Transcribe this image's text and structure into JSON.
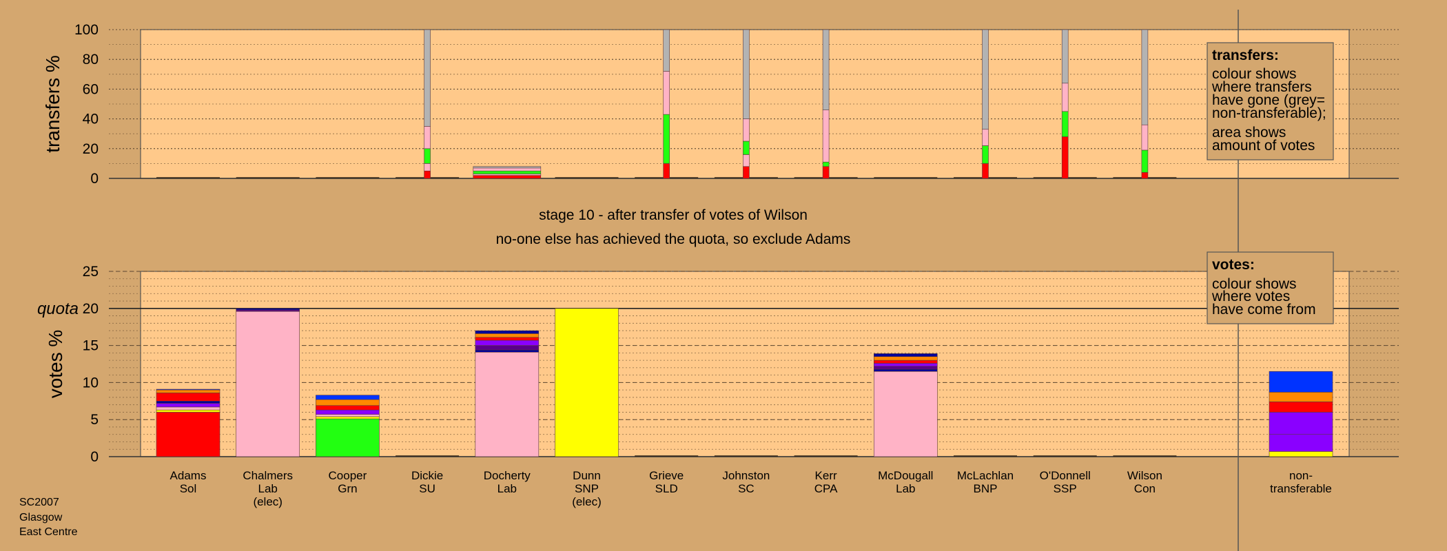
{
  "colors": {
    "background": "#d4a76f",
    "panel": "#ffc98a",
    "Sol": "#ff0000",
    "Lab": "#ffb3c6",
    "Grn": "#22ff11",
    "SNP": "#ffff00",
    "BNP": "#7a1a9e",
    "SSP": "#ff8800",
    "CPA": "#9b00ff",
    "SLD": "#ff9a00",
    "SC": "#cc6600",
    "SU": "#0033cc",
    "Con": "#0000ff",
    "nontransferable": "#b3b3b3",
    "nt_yellow": "#ffff00",
    "nt_purple": "#8a00ff",
    "nt_red": "#ff0000",
    "nt_orange": "#ff8800",
    "nt_blue": "#0033ff",
    "navy": "#000099",
    "darkpurple": "#5a008a"
  },
  "stage": {
    "line1": "stage 10 - after transfer of votes of Wilson",
    "line2": "no-one else has achieved the quota, so exclude Adams"
  },
  "footer": [
    "SC2007",
    "Glasgow",
    "East Centre"
  ],
  "legend_transfers": {
    "title": "transfers:",
    "lines1": [
      "colour shows",
      "where transfers",
      "have gone (grey=",
      "non-transferable);"
    ],
    "lines2": [
      "area shows",
      "amount of votes"
    ]
  },
  "legend_votes": {
    "title": "votes:",
    "lines": [
      "colour shows",
      "where votes",
      "have come from"
    ]
  },
  "chart_data": [
    {
      "type": "bar",
      "ylabel": "transfers %",
      "ylim": [
        0,
        100
      ],
      "yticks": [
        0,
        20,
        40,
        60,
        80,
        100
      ],
      "categories": [
        "Adams",
        "Chalmers",
        "Cooper",
        "Dickie",
        "Docherty",
        "Dunn",
        "Grieve",
        "Johnston",
        "Kerr",
        "McDougall",
        "McLachlan",
        "O'Donnell",
        "Wilson"
      ],
      "bars": [
        {
          "category": "Dickie",
          "segments": [
            [
              "Sol",
              5
            ],
            [
              "Lab",
              5
            ],
            [
              "Grn",
              10
            ],
            [
              "Lab",
              15
            ],
            [
              "nontransferable",
              65
            ]
          ]
        },
        {
          "category": "Docherty",
          "segments": [
            [
              "Sol",
              2
            ],
            [
              "Lab",
              1
            ],
            [
              "Grn",
              2
            ],
            [
              "Lab",
              2
            ],
            [
              "nontransferable",
              1
            ]
          ]
        },
        {
          "category": "Grieve",
          "segments": [
            [
              "Sol",
              10
            ],
            [
              "Grn",
              33
            ],
            [
              "Lab",
              29
            ],
            [
              "nontransferable",
              28
            ]
          ]
        },
        {
          "category": "Johnston",
          "segments": [
            [
              "Sol",
              8
            ],
            [
              "Lab",
              8
            ],
            [
              "Grn",
              9
            ],
            [
              "Lab",
              15
            ],
            [
              "nontransferable",
              60
            ]
          ]
        },
        {
          "category": "Kerr",
          "segments": [
            [
              "Sol",
              8
            ],
            [
              "Grn",
              3
            ],
            [
              "Lab",
              35
            ],
            [
              "nontransferable",
              54
            ]
          ]
        },
        {
          "category": "McLachlan",
          "segments": [
            [
              "Sol",
              10
            ],
            [
              "Grn",
              12
            ],
            [
              "Lab",
              11
            ],
            [
              "nontransferable",
              67
            ]
          ]
        },
        {
          "category": "O'Donnell",
          "segments": [
            [
              "Sol",
              28
            ],
            [
              "Grn",
              17
            ],
            [
              "Lab",
              19
            ],
            [
              "nontransferable",
              36
            ]
          ]
        },
        {
          "category": "Wilson",
          "segments": [
            [
              "Sol",
              4
            ],
            [
              "Grn",
              15
            ],
            [
              "Lab",
              17
            ],
            [
              "nontransferable",
              64
            ]
          ]
        }
      ]
    },
    {
      "type": "bar",
      "ylabel": "votes %",
      "ylim": [
        0,
        25
      ],
      "yticks": [
        0,
        5,
        10,
        15,
        20,
        25
      ],
      "quota": 20,
      "quota_label": "quota",
      "categories": [
        "Adams",
        "Chalmers",
        "Cooper",
        "Dickie",
        "Docherty",
        "Dunn",
        "Grieve",
        "Johnston",
        "Kerr",
        "McDougall",
        "McLachlan",
        "O'Donnell",
        "Wilson",
        "non-transferable"
      ],
      "labels": [
        [
          "Adams",
          "Sol"
        ],
        [
          "Chalmers",
          "Lab",
          "(elec)"
        ],
        [
          "Cooper",
          "Grn"
        ],
        [
          "Dickie",
          "SU"
        ],
        [
          "Docherty",
          "Lab"
        ],
        [
          "Dunn",
          "SNP",
          "(elec)"
        ],
        [
          "Grieve",
          "SLD"
        ],
        [
          "Johnston",
          "SC"
        ],
        [
          "Kerr",
          "CPA"
        ],
        [
          "McDougall",
          "Lab"
        ],
        [
          "McLachlan",
          "BNP"
        ],
        [
          "O'Donnell",
          "SSP"
        ],
        [
          "Wilson",
          "Con"
        ],
        [
          "non-",
          "transferable"
        ]
      ],
      "bars": [
        {
          "category": "Adams",
          "segments": [
            [
              "Sol",
              6.0
            ],
            [
              "SNP",
              0.3
            ],
            [
              "Lab",
              0.4
            ],
            [
              "nt_purple",
              0.5
            ],
            [
              "navy",
              0.3
            ],
            [
              "nt_red",
              1.1
            ],
            [
              "nt_orange",
              0.4
            ],
            [
              "nt_blue",
              0.1
            ]
          ]
        },
        {
          "category": "Chalmers",
          "segments": [
            [
              "Lab",
              19.6
            ],
            [
              "darkpurple",
              0.2
            ],
            [
              "navy",
              0.2
            ]
          ]
        },
        {
          "category": "Cooper",
          "segments": [
            [
              "Grn",
              5.1
            ],
            [
              "SNP",
              0.3
            ],
            [
              "Lab",
              0.3
            ],
            [
              "nt_purple",
              0.6
            ],
            [
              "nt_red",
              0.6
            ],
            [
              "nt_orange",
              0.8
            ],
            [
              "nt_blue",
              0.6
            ]
          ]
        },
        {
          "category": "Docherty",
          "segments": [
            [
              "Lab",
              14.1
            ],
            [
              "navy",
              0.3
            ],
            [
              "darkpurple",
              0.6
            ],
            [
              "nt_purple",
              0.7
            ],
            [
              "nt_red",
              0.4
            ],
            [
              "nt_orange",
              0.5
            ],
            [
              "navy",
              0.4
            ]
          ]
        },
        {
          "category": "Dunn",
          "segments": [
            [
              "SNP",
              20.0
            ]
          ]
        },
        {
          "category": "McDougall",
          "segments": [
            [
              "Lab",
              11.5
            ],
            [
              "navy",
              0.3
            ],
            [
              "darkpurple",
              0.4
            ],
            [
              "nt_purple",
              0.4
            ],
            [
              "nt_red",
              0.4
            ],
            [
              "nt_orange",
              0.5
            ],
            [
              "navy",
              0.4
            ]
          ]
        },
        {
          "category": "non-transferable",
          "segments": [
            [
              "nt_yellow",
              0.7
            ],
            [
              "nt_purple",
              2.3
            ],
            [
              "nt_purple",
              3.0
            ],
            [
              "nt_red",
              1.4
            ],
            [
              "nt_orange",
              1.3
            ],
            [
              "nt_blue",
              2.8
            ]
          ]
        }
      ]
    }
  ]
}
